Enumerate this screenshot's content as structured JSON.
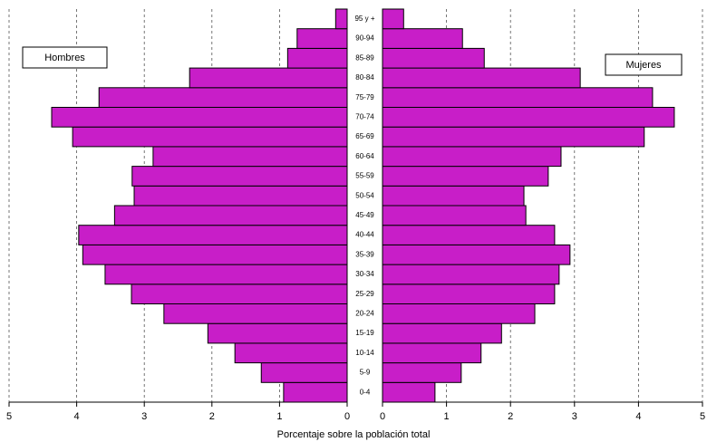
{
  "chart_data": {
    "type": "pyramid",
    "xlabel": "Porcentaje sobre la población total",
    "categories": [
      "0-4",
      "5-9",
      "10-14",
      "15-19",
      "20-24",
      "25-29",
      "30-34",
      "35-39",
      "40-44",
      "45-49",
      "50-54",
      "55-59",
      "60-64",
      "65-69",
      "70-74",
      "75-79",
      "80-84",
      "85-89",
      "90-94",
      "95 y +"
    ],
    "series": [
      {
        "name": "Hombres",
        "color": "#c81ec8",
        "values": [
          0.94,
          1.27,
          1.66,
          2.06,
          2.71,
          3.19,
          3.58,
          3.91,
          3.97,
          3.44,
          3.15,
          3.18,
          2.87,
          4.06,
          4.37,
          3.67,
          2.33,
          0.88,
          0.74,
          0.17
        ]
      },
      {
        "name": "Mujeres",
        "color": "#c81ec8",
        "values": [
          0.82,
          1.23,
          1.54,
          1.86,
          2.38,
          2.69,
          2.76,
          2.93,
          2.69,
          2.24,
          2.21,
          2.59,
          2.79,
          4.09,
          4.56,
          4.22,
          3.09,
          1.59,
          1.25,
          0.33
        ]
      }
    ],
    "xlim": [
      0,
      5
    ],
    "xticks": [
      0,
      1,
      2,
      3,
      4,
      5
    ],
    "grid": true
  }
}
